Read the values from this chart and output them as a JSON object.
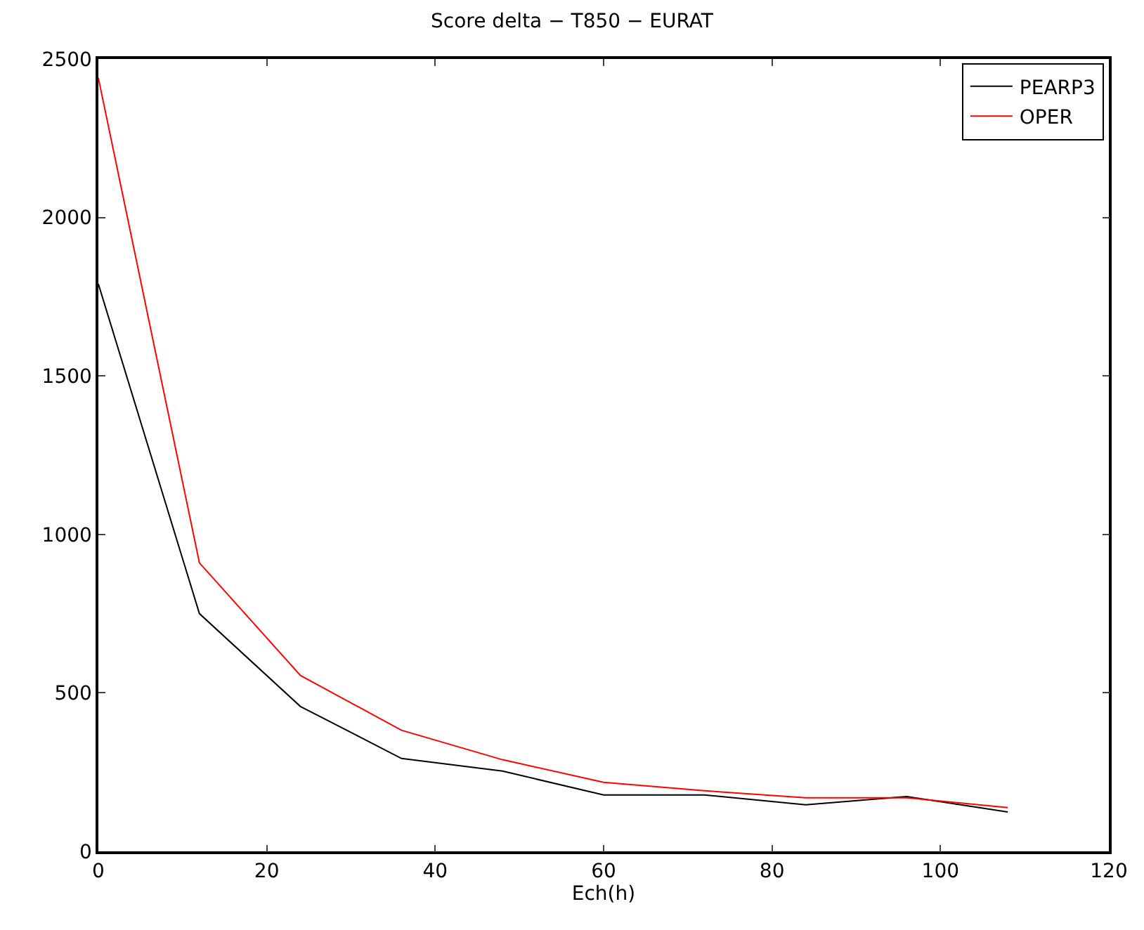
{
  "chart_data": {
    "type": "line",
    "title": "Score delta − T850 − EURAT",
    "xlabel": "Ech(h)",
    "x": [
      0,
      12,
      24,
      36,
      48,
      60,
      72,
      84,
      96,
      108
    ],
    "series": [
      {
        "name": "PEARP3",
        "color": "#000000",
        "values": [
          1790,
          750,
          457,
          293,
          253,
          178,
          178,
          147,
          173,
          124
        ]
      },
      {
        "name": "OPER",
        "color": "#ff0000",
        "values": [
          2440,
          910,
          555,
          382,
          289,
          218,
          191,
          169,
          169,
          138
        ]
      }
    ],
    "xlim": [
      0,
      120
    ],
    "xticks": [
      0,
      20,
      40,
      60,
      80,
      100,
      120
    ],
    "ylim": [
      0,
      2500
    ],
    "yticks": [
      0,
      500,
      1000,
      1500,
      2000,
      2500
    ],
    "legend": "top right",
    "marker": "none",
    "line_style": "solid"
  }
}
